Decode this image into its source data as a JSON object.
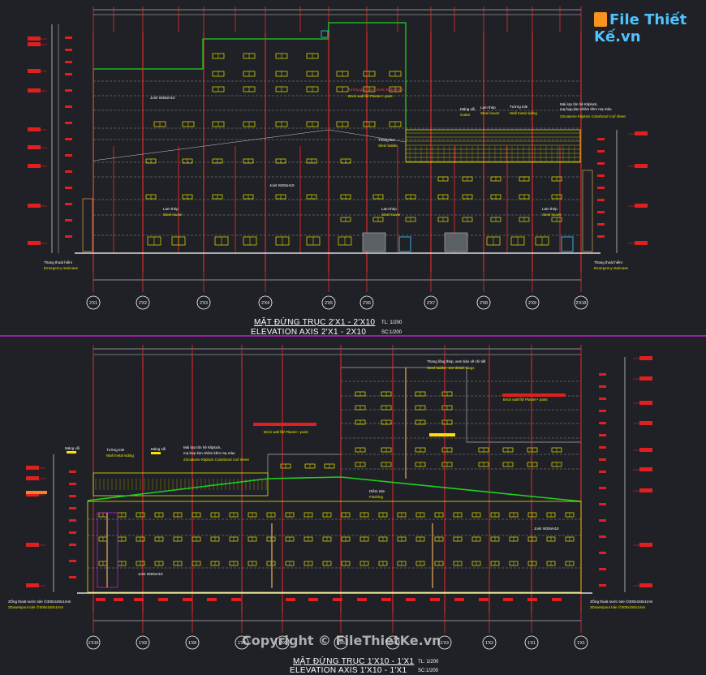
{
  "brand": {
    "logo_text": "File Thiết Kế.vn",
    "watermark": "Copyright © FileThietKe.vn"
  },
  "top": {
    "title_vn": "MẶT ĐỨNG TRỤC 2'X1 - 2'X10",
    "title_en": "ELEVATION AXIS 2'X1 - 2X10",
    "scale_vn": "TL: 1/200",
    "scale_en": "SC:1/200",
    "axes": [
      "2'X1",
      "2'X2",
      "2'X3",
      "2'X4",
      "2'X5",
      "2'X6",
      "2'X7",
      "2'X8",
      "2'X9",
      "2'X10"
    ],
    "notes": {
      "brick_wall": "Tường gạch sơn nước hoàn thiện",
      "brick_wall_en": "Brick wall fill/ Plaster+ paint",
      "joint1": "Joint W30xH10",
      "joint2": "Joint W30xH10",
      "gutter_vn": "Máng xối",
      "gutter_en": "Gutter",
      "louver_vn": "Lam thép",
      "louver_en": "Steel louver",
      "wall_siding_vn": "Tường tole",
      "wall_siding_en": "Wall metal siding",
      "roof_vn": "Mái lợp tôn hệ Kliplock,",
      "roof_vn2": "mạ hợp kim nhôm kẽm mạ màu",
      "roof_en": "Zincalume Kliplock Colorbond roof sheet",
      "ladder_vn": "Thang leo",
      "ladder_en": "Steel ladder",
      "louver2_vn": "Lam thép",
      "louver2_en": "Steel louver",
      "louver3_vn": "Lam thép",
      "louver3_en": "Steel louver",
      "louver4_vn": "Lam thép",
      "louver4_en": "Steel louver",
      "stair_l_vn": "Thang thoát hiểm",
      "stair_l_en": "Emergency staircase",
      "stair_r_vn": "Thang thoát hiểm",
      "stair_r_en": "Emergency staircase"
    }
  },
  "bottom": {
    "title_vn": "MẶT ĐỨNG TRỤC 1'X10 - 1'X1",
    "title_en": "ELEVATION AXIS 1'X10 - 1'X1",
    "scale_vn": "TL: 1/200",
    "scale_en": "SC:1/200",
    "axes": [
      "1'X10",
      "1'X9",
      "1'X8",
      "1'X7",
      "1'X6",
      "1'X5",
      "1'X4",
      "1'X3",
      "1'X2",
      "1'X1"
    ],
    "notes": {
      "ladder_vn": "Thang lồng thép, xem bản vẽ chi tiết",
      "ladder_en": "Steel ladder, see detail. dwgs",
      "brick_r": "Brick wall fill/ Plaster+ paint",
      "brick_l": "Brick wall fill/ Plaster+ paint",
      "gutter": "Máng xối",
      "siding_vn": "Tường tole",
      "siding_en": "Wall metal siding",
      "gutter2": "Máng xối",
      "roof_vn": "Mái lợp tôn hệ Kliplock,",
      "roof_vn2": "mạ hợp kim nhôm kẽm mạ màu",
      "roof_en": "Zincalume Kliplock Colorbond roof sheet",
      "flashing_vn": "Diềm tole",
      "flashing_en": "Flashing",
      "joint_a": "Joint W30xH10",
      "joint_b": "Joint W30xH10",
      "down_l1": "3Ống thoát nước tole ∅300x150x1mm",
      "down_l2": "3Downspout tole ∅300x150x1mm",
      "down_r1": "3Ống thoát nước tole ∅300x150x1mm",
      "down_r2": "3Downspout tole ∅300x150x1mm"
    }
  }
}
